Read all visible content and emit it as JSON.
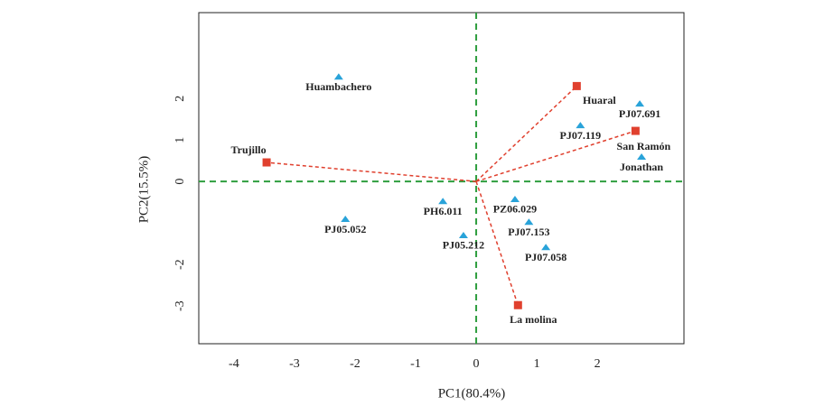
{
  "chart_data": {
    "type": "biplot",
    "xlabel": "PC1(80.4%)",
    "ylabel": "PC2(15.5%)",
    "xlim": [
      -4.58,
      3.43
    ],
    "ylim": [
      -3.91,
      4.07
    ],
    "xticks": [
      -4,
      -3,
      -2,
      -1,
      0,
      1,
      2
    ],
    "yticks": [
      2,
      1,
      0,
      -2,
      -3
    ],
    "reference_line_color": "#2e9e3e",
    "series": [
      {
        "marker": "triangle",
        "color": "#29a3d9",
        "labels": [
          "Huambachero",
          "PJ07.691",
          "PJ07.119",
          "Jonathan",
          "PJ05.052",
          "PH6.011",
          "PJ05.212",
          "PZ06.029",
          "PJ07.153",
          "PJ07.058"
        ],
        "x": [
          -2.27,
          2.7,
          1.72,
          2.73,
          -2.16,
          -0.55,
          -0.21,
          0.64,
          0.87,
          1.15
        ],
        "y": [
          2.52,
          1.87,
          1.35,
          0.59,
          -0.91,
          -0.48,
          -1.3,
          -0.43,
          -0.98,
          -1.59
        ]
      },
      {
        "marker": "square",
        "color": "#e0402e",
        "vectors": true,
        "labels": [
          "Trujillo",
          "Huaral",
          "San Ramón",
          "La molina"
        ],
        "x": [
          -3.46,
          1.66,
          2.63,
          0.69
        ],
        "y": [
          0.46,
          2.3,
          1.22,
          -2.98
        ]
      }
    ]
  }
}
